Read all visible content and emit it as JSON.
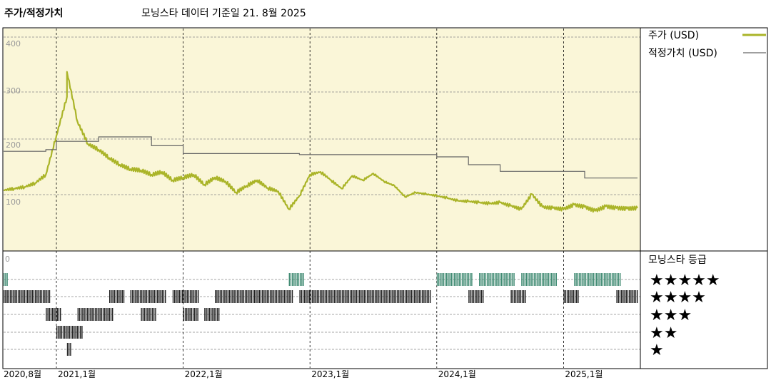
{
  "header": {
    "title": "주가/적정가치",
    "subtitle": "모닝스타 데이터 기준일 21. 8월 2025"
  },
  "colors": {
    "plot_bg": "#faf6d8",
    "price": "#aab428",
    "fair": "#666666",
    "rating_green": "#3f8a72",
    "rating_black": "#222222",
    "grid": "#888888"
  },
  "chart_data": {
    "type": "line",
    "y_ticks": [
      "400",
      "300",
      "200",
      "100"
    ],
    "ylim": [
      0,
      450
    ],
    "x_ticks": [
      "2020,8월",
      "2021,1월",
      "2022,1월",
      "2023,1월",
      "2024,1월",
      "2025,1월"
    ],
    "x_tick_dates": [
      "2020-08",
      "2021-01",
      "2022-01",
      "2023-01",
      "2024-01",
      "2025-01"
    ],
    "x_range": [
      "2020-08",
      "2025-08"
    ],
    "legend": [
      {
        "label": "주가 (USD)",
        "color": "#aab428"
      },
      {
        "label": "적정가치 (USD)",
        "color": "#666666"
      }
    ],
    "series": [
      {
        "name": "주가 (USD)",
        "x": [
          "2020-08",
          "2020-09",
          "2020-10",
          "2020-11",
          "2020-12",
          "2021-01",
          "2021-02",
          "2021-02",
          "2021-03",
          "2021-04",
          "2021-05",
          "2021-06",
          "2021-07",
          "2021-08",
          "2021-09",
          "2021-10",
          "2021-11",
          "2021-12",
          "2022-01",
          "2022-02",
          "2022-03",
          "2022-04",
          "2022-05",
          "2022-06",
          "2022-07",
          "2022-08",
          "2022-09",
          "2022-10",
          "2022-11",
          "2022-12",
          "2023-01",
          "2023-02",
          "2023-03",
          "2023-04",
          "2023-05",
          "2023-06",
          "2023-07",
          "2023-08",
          "2023-09",
          "2023-10",
          "2023-11",
          "2023-12",
          "2024-01",
          "2024-02",
          "2024-03",
          "2024-04",
          "2024-05",
          "2024-06",
          "2024-07",
          "2024-08",
          "2024-09",
          "2024-10",
          "2024-11",
          "2024-12",
          "2025-01",
          "2025-02",
          "2025-03",
          "2025-04",
          "2025-05",
          "2025-06",
          "2025-07",
          "2025-08"
        ],
        "y": [
          122,
          125,
          128,
          135,
          150,
          220,
          290,
          335,
          245,
          205,
          195,
          180,
          168,
          160,
          158,
          150,
          155,
          140,
          145,
          150,
          132,
          145,
          138,
          118,
          130,
          140,
          126,
          120,
          88,
          112,
          150,
          155,
          140,
          125,
          148,
          140,
          152,
          138,
          130,
          110,
          118,
          115,
          112,
          108,
          103,
          102,
          100,
          98,
          100,
          94,
          88,
          115,
          92,
          90,
          88,
          96,
          92,
          85,
          93,
          90,
          89,
          90
        ]
      },
      {
        "name": "적정가치 (USD)",
        "x": [
          "2020-08",
          "2020-12",
          "2021-01",
          "2021-05",
          "2021-10",
          "2022-01",
          "2022-12",
          "2023-01",
          "2023-12",
          "2024-01",
          "2024-04",
          "2024-07",
          "2025-01",
          "2025-03",
          "2025-08"
        ],
        "y": [
          192,
          195,
          210,
          218,
          202,
          188,
          186,
          186,
          186,
          182,
          168,
          156,
          156,
          144,
          144
        ]
      }
    ],
    "rating_panel": {
      "title": "모닝스타 등급",
      "zero_label": "0",
      "levels": [
        "★★★★★",
        "★★★★",
        "★★★",
        "★★",
        "★"
      ],
      "periods": [
        {
          "stars": 5,
          "from": "2020-08",
          "to": "2020-08"
        },
        {
          "stars": 4,
          "from": "2020-08",
          "to": "2020-12"
        },
        {
          "stars": 3,
          "from": "2020-12",
          "to": "2021-01"
        },
        {
          "stars": 2,
          "from": "2021-01",
          "to": "2021-03"
        },
        {
          "stars": 1,
          "from": "2021-02",
          "to": "2021-02"
        },
        {
          "stars": 3,
          "from": "2021-03",
          "to": "2021-06"
        },
        {
          "stars": 4,
          "from": "2021-06",
          "to": "2021-07"
        },
        {
          "stars": 4,
          "from": "2021-08",
          "to": "2021-11"
        },
        {
          "stars": 3,
          "from": "2021-09",
          "to": "2021-10"
        },
        {
          "stars": 4,
          "from": "2021-12",
          "to": "2022-02"
        },
        {
          "stars": 3,
          "from": "2022-01",
          "to": "2022-02"
        },
        {
          "stars": 3,
          "from": "2022-03",
          "to": "2022-04"
        },
        {
          "stars": 4,
          "from": "2022-04",
          "to": "2022-11"
        },
        {
          "stars": 5,
          "from": "2022-11",
          "to": "2022-12"
        },
        {
          "stars": 4,
          "from": "2022-12",
          "to": "2023-12"
        },
        {
          "stars": 5,
          "from": "2024-01",
          "to": "2024-04"
        },
        {
          "stars": 4,
          "from": "2024-04",
          "to": "2024-05"
        },
        {
          "stars": 5,
          "from": "2024-05",
          "to": "2024-08"
        },
        {
          "stars": 4,
          "from": "2024-08",
          "to": "2024-09"
        },
        {
          "stars": 5,
          "from": "2024-09",
          "to": "2024-12"
        },
        {
          "stars": 4,
          "from": "2025-01",
          "to": "2025-02"
        },
        {
          "stars": 5,
          "from": "2025-02",
          "to": "2025-06"
        },
        {
          "stars": 4,
          "from": "2025-06",
          "to": "2025-08"
        }
      ]
    }
  }
}
